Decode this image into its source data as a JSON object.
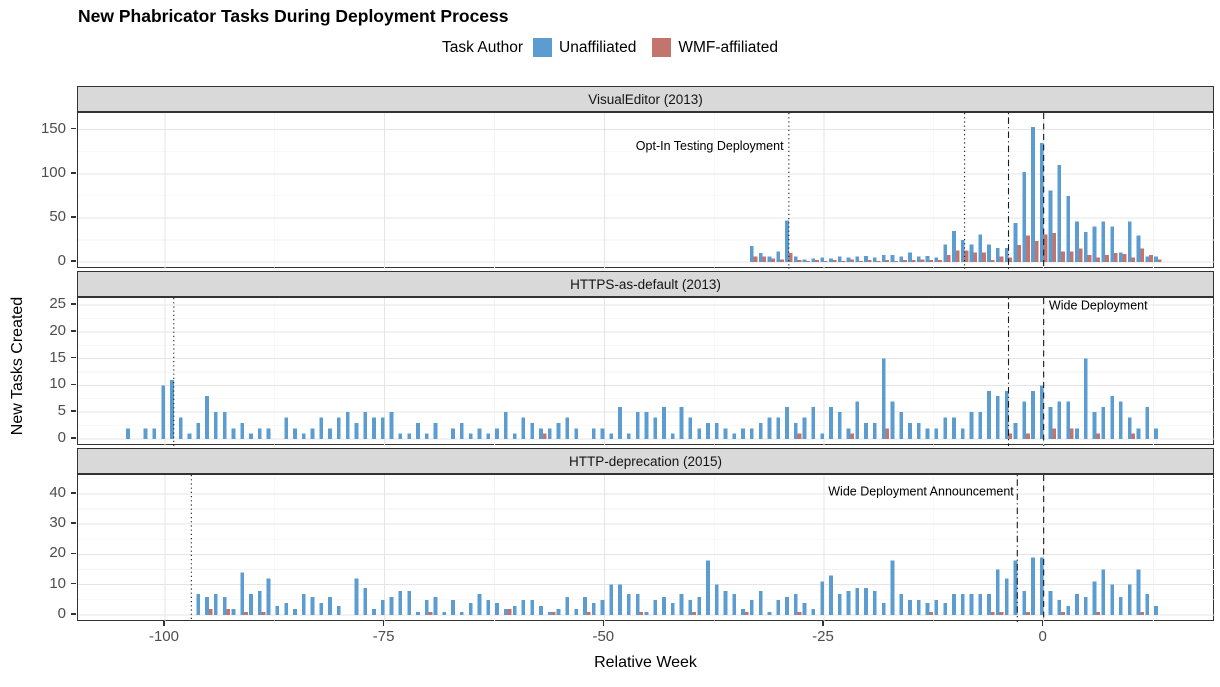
{
  "page": {
    "title": "New Phabricator Tasks During Deployment Process"
  },
  "chart_data": {
    "type": "bar",
    "position": "dodge",
    "title": "New Phabricator Tasks During Deployment Process",
    "legend_title": "Task Author",
    "legend_entries": [
      {
        "label": "Unaffiliated",
        "color": "#5B9CD1"
      },
      {
        "label": "WMF-affiliated",
        "color": "#C3756D"
      }
    ],
    "xlabel": "Relative Week",
    "ylabel": "New Tasks Created",
    "grid": {
      "major_color": "#e5e5e5",
      "minor_color": "#f2f2f2"
    },
    "x_ticks": [
      -100,
      -75,
      -50,
      -25,
      0
    ],
    "x_minor_ticks": [
      -87.5,
      -62.5,
      -37.5,
      -12.5,
      12.5
    ],
    "x_range": [
      -109.9,
      19.5
    ],
    "facets": [
      {
        "label": "VisualEditor (2013)",
        "y_ticks": [
          0,
          50,
          100,
          150
        ],
        "y_minor_ticks": [
          25,
          75,
          125
        ],
        "ylim": [
          -8,
          169
        ],
        "vlines": [
          {
            "x": -29,
            "style": "dotted"
          },
          {
            "x": -9,
            "style": "dotted"
          },
          {
            "x": -4,
            "style": "dotdash"
          },
          {
            "x": 0,
            "style": "dashed"
          }
        ],
        "annotation": {
          "text": "Opt-In Testing Deployment",
          "x": -29.6,
          "y": 132,
          "anchor": "end"
        },
        "start_week": -33,
        "unaffiliated": [
          18,
          10,
          6,
          12,
          47,
          6,
          3,
          4,
          5,
          4,
          6,
          5,
          6,
          7,
          5,
          8,
          8,
          6,
          11,
          6,
          7,
          5,
          20,
          35,
          25,
          20,
          31,
          20,
          16,
          16,
          44,
          102,
          153,
          135,
          81,
          110,
          75,
          46,
          34,
          40,
          46,
          40,
          11,
          46,
          30,
          6,
          6
        ],
        "wmf": [
          6,
          6,
          4,
          3,
          10,
          2,
          1,
          2,
          1,
          2,
          1,
          3,
          1,
          2,
          1,
          2,
          1,
          2,
          2,
          3,
          2,
          2,
          8,
          13,
          13,
          11,
          11,
          2,
          6,
          5,
          19,
          30,
          24,
          31,
          33,
          12,
          12,
          15,
          8,
          5,
          8,
          10,
          9,
          5,
          15,
          8,
          3
        ]
      },
      {
        "label": "HTTPS-as-default (2013)",
        "y_ticks": [
          0,
          5,
          10,
          15,
          20,
          25
        ],
        "y_minor_ticks": [
          2.5,
          7.5,
          12.5,
          17.5,
          22.5
        ],
        "ylim": [
          -1.3,
          26.3
        ],
        "vlines": [
          {
            "x": -99,
            "style": "dotted"
          },
          {
            "x": -4,
            "style": "dotdash"
          },
          {
            "x": 0,
            "style": "dashed"
          }
        ],
        "annotation": {
          "text": "Wide Deployment",
          "x": 0.6,
          "y": 25,
          "anchor": "start"
        },
        "start_week": -104,
        "unaffiliated": [
          2,
          0,
          2,
          2,
          10,
          11,
          4,
          1,
          3,
          8,
          5,
          5,
          2,
          3,
          1,
          2,
          2,
          0,
          4,
          2,
          1,
          2,
          4,
          2,
          4,
          5,
          3,
          5,
          4,
          4,
          5,
          1,
          1,
          3,
          1,
          3,
          0,
          2,
          3,
          1,
          2,
          1,
          2,
          5,
          1,
          4,
          3,
          2,
          2,
          3,
          4,
          2,
          0,
          2,
          2,
          1,
          6,
          1,
          5,
          5,
          4,
          6,
          1,
          6,
          4,
          2,
          3,
          3,
          2,
          1,
          2,
          2,
          3,
          4,
          4,
          6,
          3,
          4,
          6,
          1,
          6,
          5,
          2,
          7,
          3,
          3,
          15,
          7,
          5,
          3,
          3,
          2,
          2,
          4,
          4,
          2,
          5,
          5,
          9,
          8,
          9,
          3,
          7,
          9,
          10,
          6,
          7,
          7,
          2,
          15,
          5,
          6,
          8,
          7,
          4,
          2,
          6,
          2
        ],
        "wmf": [
          0,
          0,
          0,
          0,
          0,
          0,
          0,
          0,
          0,
          0,
          0,
          0,
          0,
          0,
          0,
          0,
          0,
          0,
          0,
          0,
          0,
          0,
          0,
          0,
          0,
          0,
          0,
          0,
          0,
          0,
          0,
          0,
          0,
          0,
          0,
          0,
          0,
          0,
          0,
          0,
          0,
          0,
          0,
          0,
          0,
          0,
          0,
          1,
          0,
          0,
          0,
          0,
          0,
          0,
          0,
          0,
          0,
          0,
          0,
          0,
          0,
          0,
          0,
          0,
          0,
          0,
          0,
          0,
          0,
          0,
          0,
          0,
          0,
          0,
          0,
          0,
          1,
          0,
          0,
          0,
          0,
          0,
          1,
          0,
          0,
          0,
          2,
          0,
          0,
          0,
          0,
          0,
          0,
          0,
          0,
          0,
          0,
          0,
          0,
          0,
          1,
          0,
          1,
          0,
          0,
          2,
          0,
          2,
          0,
          0,
          1,
          0,
          0,
          0,
          1,
          0,
          0,
          0
        ]
      },
      {
        "label": "HTTP-deprecation (2015)",
        "y_ticks": [
          0,
          10,
          20,
          30,
          40
        ],
        "y_minor_ticks": [
          5,
          15,
          25,
          35,
          45
        ],
        "ylim": [
          -2.3,
          46.2
        ],
        "vlines": [
          {
            "x": -97,
            "style": "dotted"
          },
          {
            "x": -3,
            "style": "dotdash"
          },
          {
            "x": 0,
            "style": "dashed"
          }
        ],
        "annotation": {
          "text": "Wide Deployment Announcement",
          "x": -3.4,
          "y": 41,
          "anchor": "end"
        },
        "start_week": -104,
        "unaffiliated": [
          0,
          0,
          0,
          0,
          0,
          0,
          0,
          0,
          7,
          6,
          7,
          6,
          2,
          14,
          7,
          8,
          12,
          3,
          4,
          2,
          7,
          6,
          4,
          6,
          3,
          0,
          12,
          9,
          2,
          5,
          6,
          8,
          8,
          1,
          5,
          6,
          1,
          5,
          1,
          4,
          7,
          5,
          4,
          2,
          3,
          5,
          5,
          3,
          1,
          2,
          6,
          2,
          6,
          4,
          5,
          10,
          10,
          7,
          7,
          1,
          5,
          6,
          4,
          7,
          5,
          6,
          18,
          10,
          8,
          7,
          2,
          5,
          8,
          1,
          5,
          6,
          7,
          4,
          2,
          11,
          13,
          7,
          8,
          9,
          9,
          8,
          4,
          18,
          7,
          5,
          5,
          4,
          5,
          4,
          7,
          7,
          7,
          7,
          7,
          15,
          12,
          18,
          8,
          19,
          19,
          8,
          5,
          3,
          7,
          6,
          11,
          15,
          10,
          6,
          10,
          15,
          7,
          3
        ],
        "wmf": [
          0,
          0,
          0,
          0,
          0,
          0,
          0,
          0,
          0,
          2,
          0,
          2,
          0,
          1,
          0,
          1,
          0,
          0,
          0,
          0,
          0,
          0,
          0,
          0,
          0,
          0,
          0,
          0,
          0,
          0,
          0,
          0,
          0,
          0,
          1,
          0,
          0,
          0,
          0,
          0,
          0,
          0,
          0,
          2,
          0,
          0,
          0,
          0,
          1,
          0,
          0,
          0,
          1,
          0,
          0,
          0,
          0,
          0,
          1,
          0,
          0,
          0,
          0,
          0,
          1,
          0,
          0,
          0,
          0,
          0,
          1,
          0,
          0,
          0,
          0,
          0,
          1,
          0,
          0,
          0,
          0,
          0,
          0,
          0,
          0,
          0,
          0,
          0,
          0,
          0,
          0,
          1,
          0,
          0,
          0,
          0,
          0,
          0,
          1,
          1,
          0,
          0,
          1,
          0,
          0,
          0,
          1,
          0,
          0,
          0,
          1,
          0,
          0,
          0,
          0,
          1,
          0,
          0
        ]
      }
    ]
  }
}
